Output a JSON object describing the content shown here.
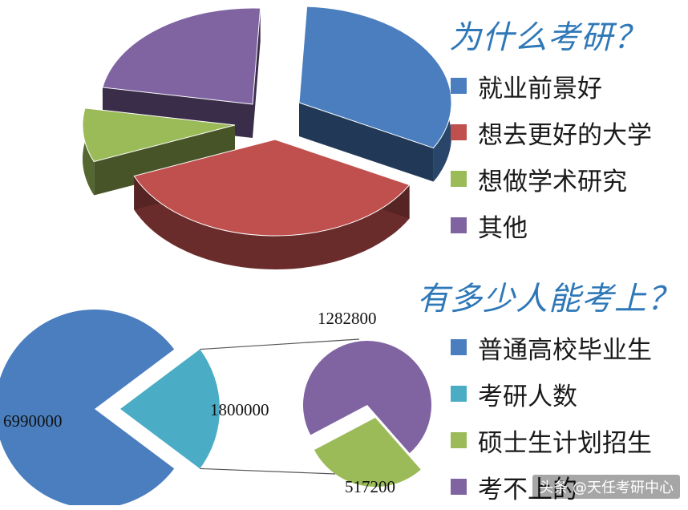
{
  "chart_data": [
    {
      "type": "pie",
      "title": "为什么考研？",
      "legend": [
        {
          "label": "就业前景好",
          "color": "#4a7ebf"
        },
        {
          "label": "想去更好的大学",
          "color": "#c0504d"
        },
        {
          "label": "想做学术研究",
          "color": "#9bbb59"
        },
        {
          "label": "其他",
          "color": "#8064a2"
        }
      ],
      "slices": [
        {
          "label": "就业前景好",
          "value": 32,
          "color": "#4a7ebf"
        },
        {
          "label": "想去更好的大学",
          "value": 36,
          "color": "#c0504d"
        },
        {
          "label": "想做学术研究",
          "value": 9,
          "color": "#9bbb59"
        },
        {
          "label": "其他",
          "value": 23,
          "color": "#8064a2"
        }
      ],
      "style": "3d-exploded"
    },
    {
      "type": "pie",
      "title": "有多少人能考上？",
      "legend": [
        {
          "label": "普通高校毕业生",
          "color": "#4a7ebf"
        },
        {
          "label": "考研人数",
          "color": "#4bacc6"
        },
        {
          "label": "硕士生计划招生",
          "color": "#9bbb59"
        },
        {
          "label": "考不上的",
          "color": "#8064a2"
        }
      ],
      "main_pie": [
        {
          "label": "普通高校毕业生",
          "value": 6990000,
          "value_label": "6990000",
          "color": "#4a7ebf"
        },
        {
          "label": "考研人数",
          "value": 1800000,
          "value_label": "1800000",
          "color": "#4bacc6"
        }
      ],
      "secondary_pie": [
        {
          "label": "考不上的",
          "value": 1282800,
          "value_label": "1282800",
          "color": "#8064a2"
        },
        {
          "label": "硕士生计划招生",
          "value": 517200,
          "value_label": "517200",
          "color": "#9bbb59"
        }
      ],
      "style": "pie-of-pie"
    }
  ],
  "watermark": "头条 @天任考研中心"
}
